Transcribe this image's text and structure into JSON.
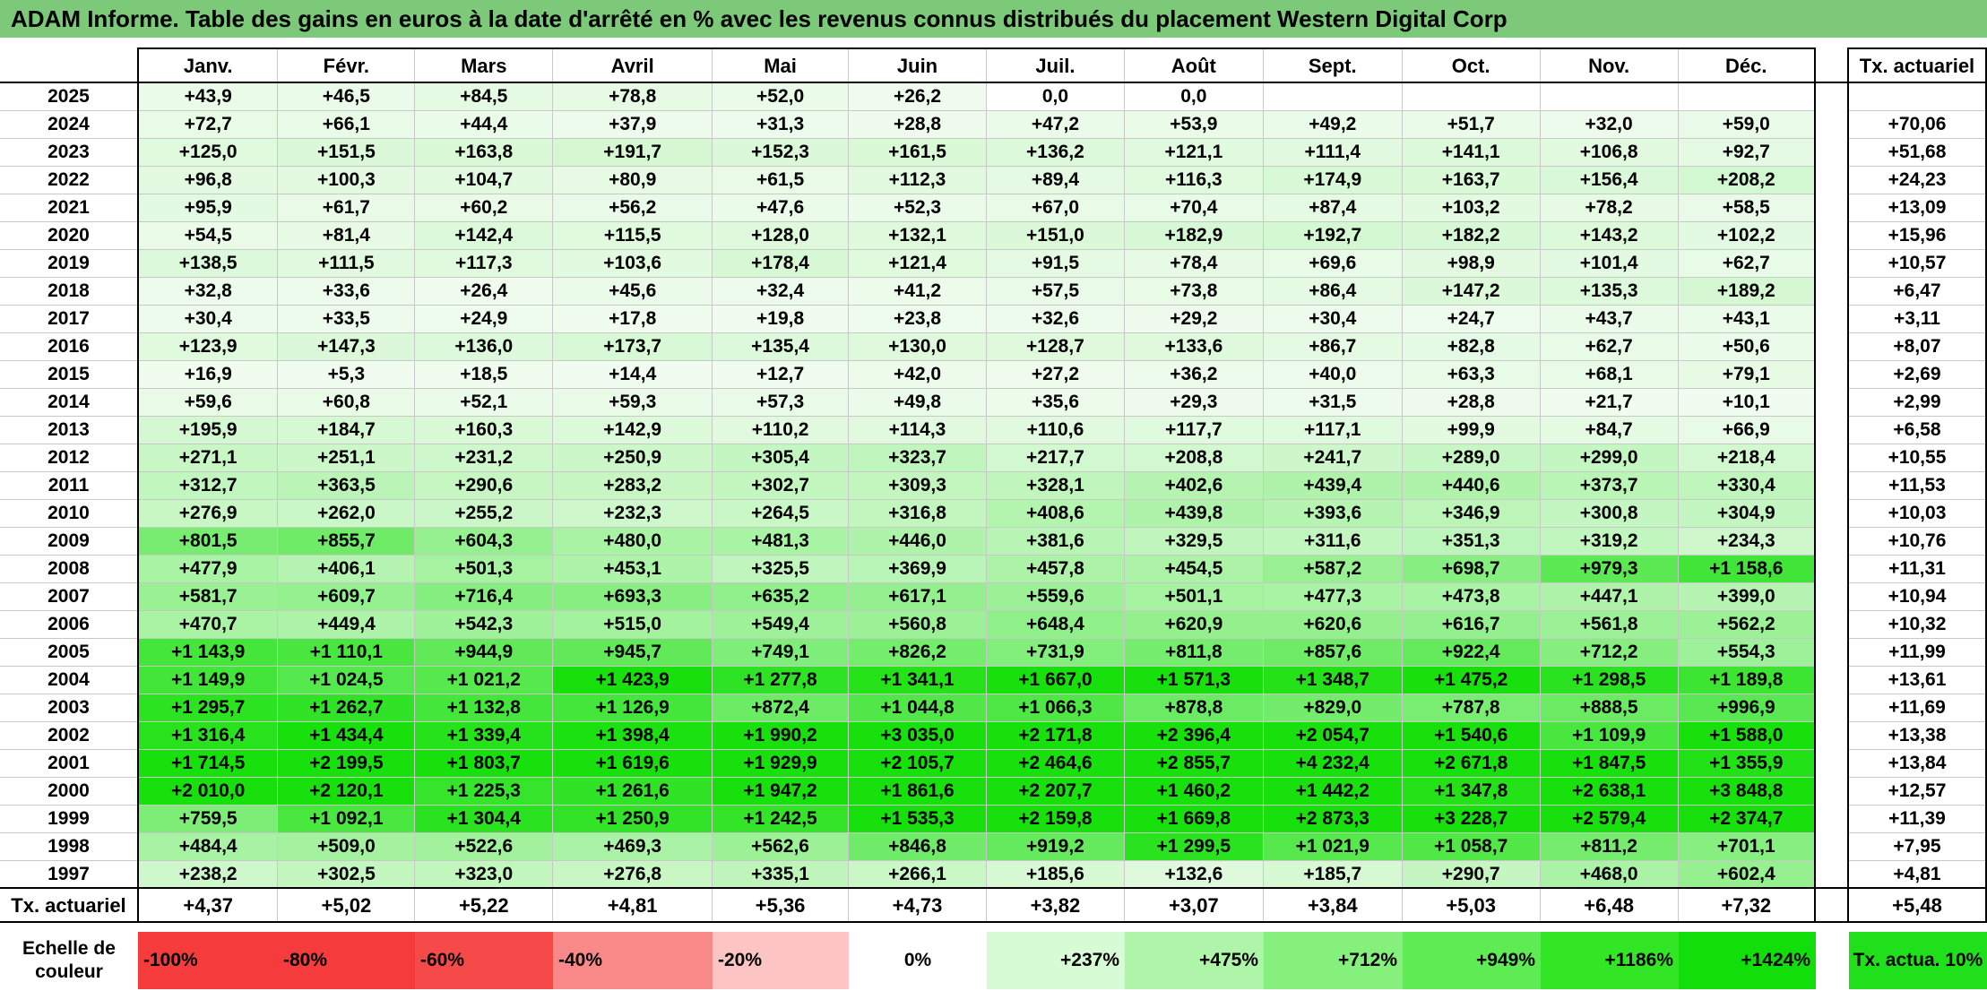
{
  "title": "ADAM Informe. Table des gains en euros à la date d'arrêté en % avec les revenus connus distribués du placement Western Digital Corp",
  "months": [
    "Janv.",
    "Févr.",
    "Mars",
    "Avril",
    "Mai",
    "Juin",
    "Juil.",
    "Août",
    "Sept.",
    "Oct.",
    "Nov.",
    "Déc."
  ],
  "annual_header": "Tx. actuariel",
  "rows": [
    {
      "year": "2025",
      "values": [
        "+43,9",
        "+46,5",
        "+84,5",
        "+78,8",
        "+52,0",
        "+26,2",
        "0,0",
        "0,0",
        "",
        "",
        "",
        ""
      ],
      "annual": ""
    },
    {
      "year": "2024",
      "values": [
        "+72,7",
        "+66,1",
        "+44,4",
        "+37,9",
        "+31,3",
        "+28,8",
        "+47,2",
        "+53,9",
        "+49,2",
        "+51,7",
        "+32,0",
        "+59,0"
      ],
      "annual": "+70,06"
    },
    {
      "year": "2023",
      "values": [
        "+125,0",
        "+151,5",
        "+163,8",
        "+191,7",
        "+152,3",
        "+161,5",
        "+136,2",
        "+121,1",
        "+111,4",
        "+141,1",
        "+106,8",
        "+92,7"
      ],
      "annual": "+51,68"
    },
    {
      "year": "2022",
      "values": [
        "+96,8",
        "+100,3",
        "+104,7",
        "+80,9",
        "+61,5",
        "+112,3",
        "+89,4",
        "+116,3",
        "+174,9",
        "+163,7",
        "+156,4",
        "+208,2"
      ],
      "annual": "+24,23"
    },
    {
      "year": "2021",
      "values": [
        "+95,9",
        "+61,7",
        "+60,2",
        "+56,2",
        "+47,6",
        "+52,3",
        "+67,0",
        "+70,4",
        "+87,4",
        "+103,2",
        "+78,2",
        "+58,5"
      ],
      "annual": "+13,09"
    },
    {
      "year": "2020",
      "values": [
        "+54,5",
        "+81,4",
        "+142,4",
        "+115,5",
        "+128,0",
        "+132,1",
        "+151,0",
        "+182,9",
        "+192,7",
        "+182,2",
        "+143,2",
        "+102,2"
      ],
      "annual": "+15,96"
    },
    {
      "year": "2019",
      "values": [
        "+138,5",
        "+111,5",
        "+117,3",
        "+103,6",
        "+178,4",
        "+121,4",
        "+91,5",
        "+78,4",
        "+69,6",
        "+98,9",
        "+101,4",
        "+62,7"
      ],
      "annual": "+10,57"
    },
    {
      "year": "2018",
      "values": [
        "+32,8",
        "+33,6",
        "+26,4",
        "+45,6",
        "+32,4",
        "+41,2",
        "+57,5",
        "+73,8",
        "+86,4",
        "+147,2",
        "+135,3",
        "+189,2"
      ],
      "annual": "+6,47"
    },
    {
      "year": "2017",
      "values": [
        "+30,4",
        "+33,5",
        "+24,9",
        "+17,8",
        "+19,8",
        "+23,8",
        "+32,6",
        "+29,2",
        "+30,4",
        "+24,7",
        "+43,7",
        "+43,1"
      ],
      "annual": "+3,11"
    },
    {
      "year": "2016",
      "values": [
        "+123,9",
        "+147,3",
        "+136,0",
        "+173,7",
        "+135,4",
        "+130,0",
        "+128,7",
        "+133,6",
        "+86,7",
        "+82,8",
        "+62,7",
        "+50,6"
      ],
      "annual": "+8,07"
    },
    {
      "year": "2015",
      "values": [
        "+16,9",
        "+5,3",
        "+18,5",
        "+14,4",
        "+12,7",
        "+42,0",
        "+27,2",
        "+36,2",
        "+40,0",
        "+63,3",
        "+68,1",
        "+79,1"
      ],
      "annual": "+2,69"
    },
    {
      "year": "2014",
      "values": [
        "+59,6",
        "+60,8",
        "+52,1",
        "+59,3",
        "+57,3",
        "+49,8",
        "+35,6",
        "+29,3",
        "+31,5",
        "+28,8",
        "+21,7",
        "+10,1"
      ],
      "annual": "+2,99"
    },
    {
      "year": "2013",
      "values": [
        "+195,9",
        "+184,7",
        "+160,3",
        "+142,9",
        "+110,2",
        "+114,3",
        "+110,6",
        "+117,7",
        "+117,1",
        "+99,9",
        "+84,7",
        "+66,9"
      ],
      "annual": "+6,58"
    },
    {
      "year": "2012",
      "values": [
        "+271,1",
        "+251,1",
        "+231,2",
        "+250,9",
        "+305,4",
        "+323,7",
        "+217,7",
        "+208,8",
        "+241,7",
        "+289,0",
        "+299,0",
        "+218,4"
      ],
      "annual": "+10,55"
    },
    {
      "year": "2011",
      "values": [
        "+312,7",
        "+363,5",
        "+290,6",
        "+283,2",
        "+302,7",
        "+309,3",
        "+328,1",
        "+402,6",
        "+439,4",
        "+440,6",
        "+373,7",
        "+330,4"
      ],
      "annual": "+11,53"
    },
    {
      "year": "2010",
      "values": [
        "+276,9",
        "+262,0",
        "+255,2",
        "+232,3",
        "+264,5",
        "+316,8",
        "+408,6",
        "+439,8",
        "+393,6",
        "+346,9",
        "+300,8",
        "+304,9"
      ],
      "annual": "+10,03"
    },
    {
      "year": "2009",
      "values": [
        "+801,5",
        "+855,7",
        "+604,3",
        "+480,0",
        "+481,3",
        "+446,0",
        "+381,6",
        "+329,5",
        "+311,6",
        "+351,3",
        "+319,2",
        "+234,3"
      ],
      "annual": "+10,76"
    },
    {
      "year": "2008",
      "values": [
        "+477,9",
        "+406,1",
        "+501,3",
        "+453,1",
        "+325,5",
        "+369,9",
        "+457,8",
        "+454,5",
        "+587,2",
        "+698,7",
        "+979,3",
        "+1 158,6"
      ],
      "annual": "+11,31"
    },
    {
      "year": "2007",
      "values": [
        "+581,7",
        "+609,7",
        "+716,4",
        "+693,3",
        "+635,2",
        "+617,1",
        "+559,6",
        "+501,1",
        "+477,3",
        "+473,8",
        "+447,1",
        "+399,0"
      ],
      "annual": "+10,94"
    },
    {
      "year": "2006",
      "values": [
        "+470,7",
        "+449,4",
        "+542,3",
        "+515,0",
        "+549,4",
        "+560,8",
        "+648,4",
        "+620,9",
        "+620,6",
        "+616,7",
        "+561,8",
        "+562,2"
      ],
      "annual": "+10,32"
    },
    {
      "year": "2005",
      "values": [
        "+1 143,9",
        "+1 110,1",
        "+944,9",
        "+945,7",
        "+749,1",
        "+826,2",
        "+731,9",
        "+811,8",
        "+857,6",
        "+922,4",
        "+712,2",
        "+554,3"
      ],
      "annual": "+11,99"
    },
    {
      "year": "2004",
      "values": [
        "+1 149,9",
        "+1 024,5",
        "+1 021,2",
        "+1 423,9",
        "+1 277,8",
        "+1 341,1",
        "+1 667,0",
        "+1 571,3",
        "+1 348,7",
        "+1 475,2",
        "+1 298,5",
        "+1 189,8"
      ],
      "annual": "+13,61"
    },
    {
      "year": "2003",
      "values": [
        "+1 295,7",
        "+1 262,7",
        "+1 132,8",
        "+1 126,9",
        "+872,4",
        "+1 044,8",
        "+1 066,3",
        "+878,8",
        "+829,0",
        "+787,8",
        "+888,5",
        "+996,9"
      ],
      "annual": "+11,69"
    },
    {
      "year": "2002",
      "values": [
        "+1 316,4",
        "+1 434,4",
        "+1 339,4",
        "+1 398,4",
        "+1 990,2",
        "+3 035,0",
        "+2 171,8",
        "+2 396,4",
        "+2 054,7",
        "+1 540,6",
        "+1 109,9",
        "+1 588,0"
      ],
      "annual": "+13,38"
    },
    {
      "year": "2001",
      "values": [
        "+1 714,5",
        "+2 199,5",
        "+1 803,7",
        "+1 619,6",
        "+1 929,9",
        "+2 105,7",
        "+2 464,6",
        "+2 855,7",
        "+4 232,4",
        "+2 671,8",
        "+1 847,5",
        "+1 355,9"
      ],
      "annual": "+13,84"
    },
    {
      "year": "2000",
      "values": [
        "+2 010,0",
        "+2 120,1",
        "+1 225,3",
        "+1 261,6",
        "+1 947,2",
        "+1 861,6",
        "+2 207,7",
        "+1 460,2",
        "+1 442,2",
        "+1 347,8",
        "+2 638,1",
        "+3 848,8"
      ],
      "annual": "+12,57"
    },
    {
      "year": "1999",
      "values": [
        "+759,5",
        "+1 092,1",
        "+1 304,4",
        "+1 250,9",
        "+1 242,5",
        "+1 535,3",
        "+2 159,8",
        "+1 669,8",
        "+2 873,3",
        "+3 228,7",
        "+2 579,4",
        "+2 374,7"
      ],
      "annual": "+11,39"
    },
    {
      "year": "1998",
      "values": [
        "+484,4",
        "+509,0",
        "+522,6",
        "+469,3",
        "+562,6",
        "+846,8",
        "+919,2",
        "+1 299,5",
        "+1 021,9",
        "+1 058,7",
        "+811,2",
        "+701,1"
      ],
      "annual": "+7,95"
    },
    {
      "year": "1997",
      "values": [
        "+238,2",
        "+302,5",
        "+323,0",
        "+276,8",
        "+335,1",
        "+266,1",
        "+185,6",
        "+132,6",
        "+185,7",
        "+290,7",
        "+468,0",
        "+602,4"
      ],
      "annual": "+4,81"
    }
  ],
  "totals": {
    "label": "Tx. actuariel",
    "values": [
      "+4,37",
      "+5,02",
      "+5,22",
      "+4,81",
      "+5,36",
      "+4,73",
      "+3,82",
      "+3,07",
      "+3,84",
      "+5,03",
      "+6,48",
      "+7,32"
    ],
    "annual": "+5,48"
  },
  "scale": {
    "label": "Echelle de couleur",
    "steps": [
      {
        "text": "-100%",
        "color": "#f53b3b",
        "align": "left"
      },
      {
        "text": "-80%",
        "color": "#f53b3b",
        "align": "left"
      },
      {
        "text": "-60%",
        "color": "#f64a4a",
        "align": "left"
      },
      {
        "text": "-40%",
        "color": "#f98989",
        "align": "left"
      },
      {
        "text": "-20%",
        "color": "#fdc4c4",
        "align": "left"
      },
      {
        "text": "0%",
        "color": "#ffffff",
        "align": "center"
      },
      {
        "text": "+237%",
        "color": "#d7fbd5",
        "align": "right"
      },
      {
        "text": "+475%",
        "color": "#aff5a9",
        "align": "right"
      },
      {
        "text": "+712%",
        "color": "#85f07c",
        "align": "right"
      },
      {
        "text": "+949%",
        "color": "#5feb53",
        "align": "right"
      },
      {
        "text": "+1186%",
        "color": "#32e626",
        "align": "right"
      },
      {
        "text": "+1424%",
        "color": "#12de0a",
        "align": "right"
      }
    ],
    "annual_label": "Tx. actua. 10%",
    "annual_color": "#1fe01a"
  }
}
